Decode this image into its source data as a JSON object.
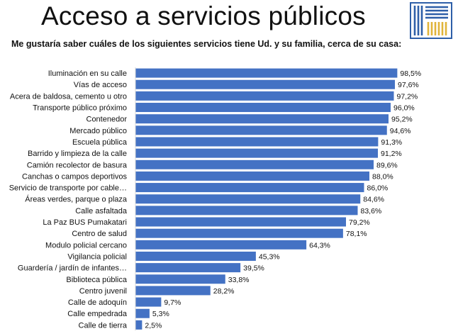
{
  "header": {
    "title": "Acceso a servicios públicos",
    "subtitle": "Me gustaría saber cuáles de los siguientes servicios tiene Ud. y su familia, cerca de su casa:"
  },
  "colors": {
    "bar": "#4472C4",
    "logo_blue": "#2E5FA8",
    "logo_gold": "#E0B43A"
  },
  "chart_data": {
    "type": "bar",
    "orientation": "horizontal",
    "title": "Acceso a servicios públicos",
    "xlabel": "",
    "ylabel": "",
    "xlim": [
      0,
      100
    ],
    "grid": false,
    "value_suffix": "%",
    "categories": [
      "Iluminación en su calle",
      "Vías de acceso",
      "Acera de baldosa, cemento u otro",
      "Transporte público próximo",
      "Contenedor",
      "Mercado público",
      "Escuela pública",
      "Barrido y limpieza de la calle",
      "Camión recolector de basura",
      "Canchas o campos deportivos",
      "Servicio de transporte por cable…",
      "Áreas verdes, parque o plaza",
      "Calle asfaltada",
      "La Paz BUS Pumakatari",
      "Centro de salud",
      "Modulo policial cercano",
      "Vigilancia policial",
      "Guardería / jardín de infantes…",
      "Biblioteca pública",
      "Centro juvenil",
      "Calle de adoquín",
      "Calle empedrada",
      "Calle de tierra"
    ],
    "values": [
      98.5,
      97.6,
      97.2,
      96.0,
      95.2,
      94.6,
      91.3,
      91.2,
      89.6,
      88.0,
      86.0,
      84.6,
      83.6,
      79.2,
      78.1,
      64.3,
      45.3,
      39.5,
      33.8,
      28.2,
      9.7,
      5.3,
      2.5
    ],
    "value_labels": [
      "98,5%",
      "97,6%",
      "97,2%",
      "96,0%",
      "95,2%",
      "94,6%",
      "91,3%",
      "91,2%",
      "89,6%",
      "88,0%",
      "86,0%",
      "84,6%",
      "83,6%",
      "79,2%",
      "78,1%",
      "64,3%",
      "45,3%",
      "39,5%",
      "33,8%",
      "28,2%",
      "9,7%",
      "5,3%",
      "2,5%"
    ]
  }
}
